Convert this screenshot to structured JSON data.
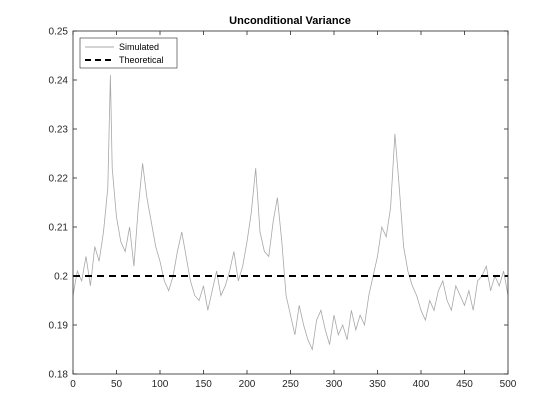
{
  "chart_data": {
    "type": "line",
    "title": "Unconditional Variance",
    "xlabel": "",
    "ylabel": "",
    "xlim": [
      0,
      500
    ],
    "ylim": [
      0.18,
      0.25
    ],
    "xticks": [
      0,
      50,
      100,
      150,
      200,
      250,
      300,
      350,
      400,
      450,
      500
    ],
    "yticks": [
      0.18,
      0.19,
      0.2,
      0.21,
      0.22,
      0.23,
      0.24,
      0.25
    ],
    "grid": false,
    "legend_position": "top-left",
    "series": [
      {
        "name": "Simulated",
        "color": "#a8a8a8",
        "style": "solid",
        "x": [
          0,
          5,
          10,
          15,
          20,
          25,
          30,
          35,
          40,
          43,
          45,
          50,
          55,
          60,
          65,
          70,
          75,
          80,
          85,
          90,
          95,
          100,
          105,
          110,
          115,
          120,
          125,
          130,
          135,
          140,
          145,
          150,
          155,
          160,
          165,
          170,
          175,
          180,
          185,
          190,
          195,
          200,
          205,
          210,
          215,
          220,
          225,
          230,
          235,
          240,
          245,
          250,
          255,
          260,
          265,
          270,
          275,
          280,
          285,
          290,
          295,
          300,
          305,
          310,
          315,
          320,
          325,
          330,
          335,
          340,
          345,
          350,
          355,
          360,
          365,
          370,
          375,
          380,
          385,
          390,
          395,
          400,
          405,
          410,
          415,
          420,
          425,
          430,
          435,
          440,
          445,
          450,
          455,
          460,
          465,
          470,
          475,
          480,
          485,
          490,
          495,
          500
        ],
        "values": [
          0.196,
          0.201,
          0.199,
          0.204,
          0.198,
          0.206,
          0.203,
          0.209,
          0.218,
          0.241,
          0.222,
          0.212,
          0.207,
          0.205,
          0.21,
          0.202,
          0.214,
          0.223,
          0.216,
          0.211,
          0.206,
          0.203,
          0.199,
          0.197,
          0.2,
          0.205,
          0.209,
          0.204,
          0.199,
          0.196,
          0.195,
          0.198,
          0.193,
          0.197,
          0.201,
          0.196,
          0.198,
          0.201,
          0.205,
          0.199,
          0.202,
          0.207,
          0.213,
          0.222,
          0.209,
          0.205,
          0.204,
          0.211,
          0.216,
          0.207,
          0.196,
          0.192,
          0.188,
          0.194,
          0.19,
          0.187,
          0.185,
          0.191,
          0.193,
          0.189,
          0.186,
          0.192,
          0.188,
          0.19,
          0.187,
          0.193,
          0.189,
          0.192,
          0.19,
          0.196,
          0.2,
          0.204,
          0.21,
          0.208,
          0.214,
          0.229,
          0.218,
          0.206,
          0.201,
          0.198,
          0.196,
          0.193,
          0.191,
          0.195,
          0.193,
          0.197,
          0.199,
          0.195,
          0.193,
          0.198,
          0.196,
          0.194,
          0.197,
          0.193,
          0.199,
          0.2,
          0.202,
          0.197,
          0.2,
          0.198,
          0.201,
          0.196
        ]
      },
      {
        "name": "Theoretical",
        "color": "#000000",
        "style": "dashed",
        "x": [
          0,
          500
        ],
        "values": [
          0.2,
          0.2
        ]
      }
    ]
  }
}
